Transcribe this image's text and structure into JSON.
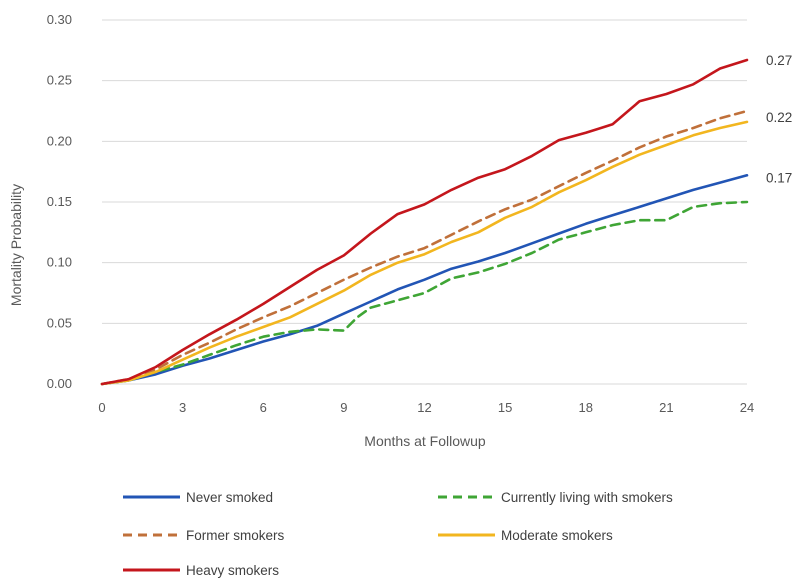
{
  "chart_data": {
    "type": "line",
    "title": "",
    "xlabel": "Months at Followup",
    "ylabel": "Mortality Probability",
    "xlim": [
      0,
      24
    ],
    "ylim": [
      0,
      0.3
    ],
    "x_ticks": [
      "0",
      "3",
      "6",
      "9",
      "12",
      "15",
      "18",
      "21",
      "24"
    ],
    "y_ticks": [
      "0.00",
      "0.05",
      "0.10",
      "0.15",
      "0.20",
      "0.25",
      "0.30"
    ],
    "grid": "horizontal",
    "legend_position": "bottom",
    "end_labels": [
      {
        "text": "0.27",
        "y": 0.267
      },
      {
        "text": "0.22",
        "y": 0.22
      },
      {
        "text": "0.17",
        "y": 0.17
      }
    ],
    "series": [
      {
        "name": "Never smoked",
        "color": "#2255B5",
        "dash": "solid",
        "points": [
          [
            0,
            0
          ],
          [
            1,
            0.003
          ],
          [
            2,
            0.008
          ],
          [
            3,
            0.015
          ],
          [
            4,
            0.021
          ],
          [
            5,
            0.028
          ],
          [
            6,
            0.035
          ],
          [
            7,
            0.041
          ],
          [
            8,
            0.048
          ],
          [
            9,
            0.058
          ],
          [
            10,
            0.068
          ],
          [
            11,
            0.078
          ],
          [
            12,
            0.086
          ],
          [
            13,
            0.095
          ],
          [
            14,
            0.101
          ],
          [
            15,
            0.108
          ],
          [
            16,
            0.116
          ],
          [
            17,
            0.124
          ],
          [
            18,
            0.132
          ],
          [
            19,
            0.139
          ],
          [
            20,
            0.146
          ],
          [
            21,
            0.153
          ],
          [
            22,
            0.16
          ],
          [
            23,
            0.166
          ],
          [
            24,
            0.172
          ]
        ]
      },
      {
        "name": "Currently living with smokers",
        "color": "#3FA535",
        "dash": "dashed",
        "points": [
          [
            0,
            0
          ],
          [
            1,
            0.003
          ],
          [
            2,
            0.01
          ],
          [
            3,
            0.016
          ],
          [
            4,
            0.024
          ],
          [
            5,
            0.032
          ],
          [
            6,
            0.039
          ],
          [
            7,
            0.043
          ],
          [
            8,
            0.045
          ],
          [
            9,
            0.044
          ],
          [
            9.5,
            0.055
          ],
          [
            10,
            0.063
          ],
          [
            11,
            0.069
          ],
          [
            12,
            0.075
          ],
          [
            13,
            0.087
          ],
          [
            14,
            0.092
          ],
          [
            15,
            0.099
          ],
          [
            16,
            0.108
          ],
          [
            17,
            0.119
          ],
          [
            18,
            0.125
          ],
          [
            19,
            0.131
          ],
          [
            20,
            0.135
          ],
          [
            21,
            0.135
          ],
          [
            22,
            0.146
          ],
          [
            23,
            0.149
          ],
          [
            24,
            0.15
          ]
        ]
      },
      {
        "name": "Former smokers",
        "color": "#C0703A",
        "dash": "dashed",
        "points": [
          [
            0,
            0
          ],
          [
            1,
            0.004
          ],
          [
            2,
            0.012
          ],
          [
            3,
            0.024
          ],
          [
            4,
            0.034
          ],
          [
            5,
            0.045
          ],
          [
            6,
            0.055
          ],
          [
            7,
            0.064
          ],
          [
            8,
            0.075
          ],
          [
            9,
            0.086
          ],
          [
            10,
            0.096
          ],
          [
            11,
            0.105
          ],
          [
            12,
            0.112
          ],
          [
            13,
            0.123
          ],
          [
            14,
            0.134
          ],
          [
            15,
            0.144
          ],
          [
            16,
            0.152
          ],
          [
            17,
            0.163
          ],
          [
            18,
            0.174
          ],
          [
            19,
            0.184
          ],
          [
            20,
            0.195
          ],
          [
            21,
            0.204
          ],
          [
            22,
            0.211
          ],
          [
            23,
            0.219
          ],
          [
            24,
            0.225
          ]
        ]
      },
      {
        "name": "Moderate smokers",
        "color": "#F2B61F",
        "dash": "solid",
        "points": [
          [
            0,
            0
          ],
          [
            1,
            0.003
          ],
          [
            2,
            0.01
          ],
          [
            3,
            0.02
          ],
          [
            4,
            0.03
          ],
          [
            5,
            0.039
          ],
          [
            6,
            0.047
          ],
          [
            7,
            0.055
          ],
          [
            8,
            0.066
          ],
          [
            9,
            0.077
          ],
          [
            10,
            0.09
          ],
          [
            11,
            0.1
          ],
          [
            12,
            0.107
          ],
          [
            13,
            0.117
          ],
          [
            14,
            0.125
          ],
          [
            15,
            0.137
          ],
          [
            16,
            0.146
          ],
          [
            17,
            0.158
          ],
          [
            18,
            0.168
          ],
          [
            19,
            0.179
          ],
          [
            20,
            0.189
          ],
          [
            21,
            0.197
          ],
          [
            22,
            0.205
          ],
          [
            23,
            0.211
          ],
          [
            24,
            0.216
          ]
        ]
      },
      {
        "name": "Heavy smokers",
        "color": "#C4161C",
        "dash": "solid",
        "points": [
          [
            0,
            0
          ],
          [
            1,
            0.004
          ],
          [
            2,
            0.014
          ],
          [
            3,
            0.028
          ],
          [
            4,
            0.041
          ],
          [
            5,
            0.053
          ],
          [
            6,
            0.066
          ],
          [
            7,
            0.08
          ],
          [
            8,
            0.094
          ],
          [
            9,
            0.106
          ],
          [
            10,
            0.124
          ],
          [
            11,
            0.14
          ],
          [
            12,
            0.148
          ],
          [
            13,
            0.16
          ],
          [
            14,
            0.17
          ],
          [
            15,
            0.177
          ],
          [
            16,
            0.188
          ],
          [
            17,
            0.201
          ],
          [
            18,
            0.207
          ],
          [
            19,
            0.214
          ],
          [
            20,
            0.233
          ],
          [
            21,
            0.239
          ],
          [
            22,
            0.247
          ],
          [
            23,
            0.26
          ],
          [
            24,
            0.267
          ]
        ]
      }
    ]
  }
}
